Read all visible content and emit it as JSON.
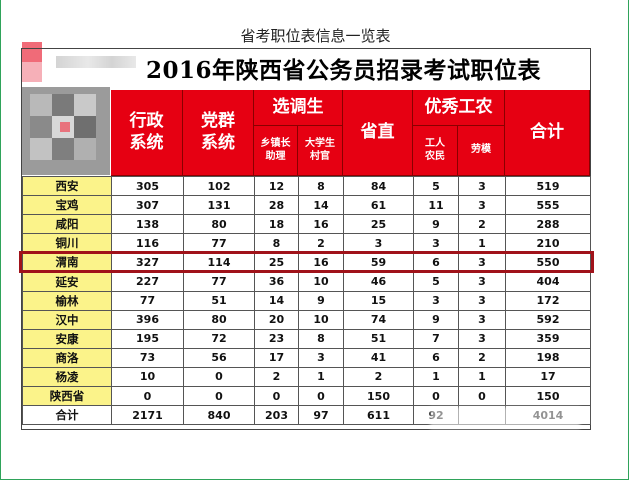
{
  "page_title": "省考职位表信息一览表",
  "table_title": "2016年陕西省公务员招录考试职位表",
  "headers": {
    "xingzheng": [
      "行政",
      "系统"
    ],
    "dangqun": [
      "党群",
      "系统"
    ],
    "xuandiaosheng": "选调生",
    "xiangzhen": [
      "乡镇长",
      "助理"
    ],
    "daxuesheng": [
      "大学生",
      "村官"
    ],
    "shengzhi": "省直",
    "youxiu": "优秀工农",
    "gongren": [
      "工人",
      "农民"
    ],
    "laomo": "劳模",
    "heji": "合计"
  },
  "rows": [
    [
      "西安",
      "305",
      "102",
      "12",
      "8",
      "84",
      "5",
      "3",
      "519"
    ],
    [
      "宝鸡",
      "307",
      "131",
      "28",
      "14",
      "61",
      "11",
      "3",
      "555"
    ],
    [
      "咸阳",
      "138",
      "80",
      "18",
      "16",
      "25",
      "9",
      "2",
      "288"
    ],
    [
      "铜川",
      "116",
      "77",
      "8",
      "2",
      "3",
      "3",
      "1",
      "210"
    ],
    [
      "渭南",
      "327",
      "114",
      "25",
      "16",
      "59",
      "6",
      "3",
      "550"
    ],
    [
      "延安",
      "227",
      "77",
      "36",
      "10",
      "46",
      "5",
      "3",
      "404"
    ],
    [
      "榆林",
      "77",
      "51",
      "14",
      "9",
      "15",
      "3",
      "3",
      "172"
    ],
    [
      "汉中",
      "396",
      "80",
      "20",
      "10",
      "74",
      "9",
      "3",
      "592"
    ],
    [
      "安康",
      "195",
      "72",
      "23",
      "8",
      "51",
      "7",
      "3",
      "359"
    ],
    [
      "商洛",
      "73",
      "56",
      "17",
      "3",
      "41",
      "6",
      "2",
      "198"
    ],
    [
      "杨凌",
      "10",
      "0",
      "2",
      "1",
      "2",
      "1",
      "1",
      "17"
    ],
    [
      "陕西省",
      "0",
      "0",
      "0",
      "0",
      "150",
      "0",
      "0",
      "150"
    ]
  ],
  "total_row": [
    "合计",
    "2171",
    "840",
    "203",
    "97",
    "611",
    "92",
    "",
    "4014"
  ],
  "highlighted_row": "渭南",
  "colors": {
    "header_red": "#e60012",
    "region_yellow": "#fbf38a",
    "highlight_border": "#a0121a"
  }
}
